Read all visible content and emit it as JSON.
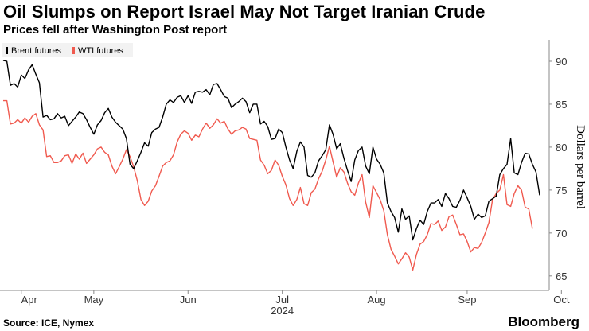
{
  "title": "Oil Slumps on Report Israel May Not Target Iranian Crude",
  "subtitle": "Prices fell after Washington Post report",
  "source": "Source: ICE, Nymex",
  "brand": "Bloomberg",
  "colors": {
    "brent": "#000000",
    "wti": "#f05a4f",
    "axis": "#888888",
    "tick": "#666666"
  },
  "chart_data": {
    "type": "line",
    "ylabel": "Dollars per barrel",
    "ylim": [
      63.5,
      92.5
    ],
    "yticks": [
      65,
      70,
      75,
      80,
      85,
      90
    ],
    "xticks": [
      "Apr",
      "May",
      "Jun",
      "Jul",
      "Aug",
      "Sep",
      "Oct"
    ],
    "year_label": "2024",
    "grid": false,
    "legend": "top-left",
    "series": [
      {
        "name": "Brent futures",
        "color": "#000000",
        "values": [
          90.1,
          90.0,
          87.2,
          87.4,
          87.0,
          88.4,
          88.0,
          89.0,
          89.6,
          88.5,
          87.5,
          83.5,
          83.7,
          83.2,
          83.3,
          83.9,
          83.4,
          83.6,
          82.5,
          83.0,
          83.5,
          84.1,
          83.9,
          83.2,
          82.3,
          81.5,
          82.6,
          83.1,
          84.0,
          84.5,
          83.5,
          82.9,
          82.5,
          82.1,
          81.0,
          78.0,
          77.5,
          78.4,
          79.4,
          80.5,
          80.1,
          81.7,
          82.1,
          82.3,
          83.5,
          85.0,
          85.5,
          85.2,
          85.8,
          86.0,
          85.2,
          86.0,
          85.1,
          86.4,
          86.5,
          86.4,
          86.7,
          86.1,
          87.3,
          87.4,
          86.7,
          85.9,
          85.7,
          84.6,
          85.0,
          85.3,
          85.7,
          85.3,
          84.0,
          85.0,
          85.0,
          82.7,
          83.0,
          82.4,
          80.9,
          81.0,
          82.1,
          81.7,
          80.0,
          78.5,
          77.5,
          79.5,
          80.6,
          80.0,
          76.7,
          76.5,
          77.0,
          78.4,
          79.0,
          79.7,
          82.6,
          81.5,
          79.8,
          80.4,
          78.7,
          77.3,
          76.0,
          78.5,
          79.6,
          80.0,
          77.8,
          76.9,
          80.0,
          78.6,
          78.0,
          77.0,
          73.5,
          72.5,
          71.8,
          70.1,
          72.8,
          71.6,
          72.0,
          69.2,
          70.5,
          71.5,
          71.0,
          72.5,
          73.5,
          73.5,
          73.9,
          73.1,
          74.6,
          74.0,
          73.1,
          73.0,
          73.8,
          75.0,
          74.1,
          73.1,
          71.6,
          72.2,
          71.8,
          72.0,
          73.7,
          74.0,
          74.3,
          76.8,
          77.5,
          78.0,
          81.0,
          77.0,
          76.8,
          78.2,
          79.3,
          79.2,
          78.0,
          77.1,
          74.4
        ]
      },
      {
        "name": "WTI futures",
        "color": "#f05a4f",
        "values": [
          85.4,
          85.4,
          82.7,
          82.8,
          83.2,
          82.8,
          83.4,
          82.9,
          83.6,
          83.9,
          82.6,
          82.0,
          78.9,
          79.0,
          78.2,
          78.2,
          78.4,
          79.0,
          79.1,
          78.1,
          79.2,
          78.6,
          79.3,
          78.1,
          78.6,
          79.1,
          79.8,
          80.0,
          79.4,
          79.1,
          77.8,
          76.9,
          77.7,
          78.6,
          79.7,
          78.9,
          77.7,
          76.1,
          73.9,
          73.2,
          73.7,
          74.9,
          75.5,
          76.6,
          77.8,
          78.2,
          78.4,
          79.1,
          80.6,
          81.5,
          81.9,
          81.6,
          80.8,
          81.4,
          81.2,
          82.1,
          82.8,
          82.2,
          82.6,
          83.3,
          82.8,
          83.0,
          82.1,
          81.5,
          81.9,
          82.0,
          82.3,
          82.1,
          81.0,
          80.9,
          80.8,
          78.5,
          77.9,
          76.9,
          77.3,
          78.5,
          77.9,
          76.6,
          75.6,
          74.0,
          73.2,
          73.9,
          75.3,
          73.4,
          73.2,
          74.7,
          75.1,
          76.3,
          77.2,
          78.5,
          80.1,
          78.3,
          76.5,
          77.6,
          77.1,
          75.8,
          74.8,
          74.4,
          75.8,
          76.8,
          73.6,
          71.8,
          75.5,
          74.7,
          73.9,
          72.6,
          69.8,
          68.1,
          67.3,
          66.4,
          67.0,
          67.7,
          67.2,
          65.7,
          67.5,
          68.7,
          69.0,
          69.8,
          71.1,
          71.0,
          71.4,
          70.3,
          70.7,
          71.9,
          72.1,
          71.0,
          69.8,
          69.9,
          69.0,
          67.8,
          68.3,
          68.2,
          68.9,
          70.0,
          71.2,
          73.9,
          74.6,
          75.0,
          76.8,
          73.3,
          73.1,
          74.6,
          75.5,
          75.0,
          73.0,
          72.8,
          70.5
        ]
      }
    ],
    "tick_positions": [
      5,
      25,
      51,
      77,
      103,
      128,
      154
    ]
  }
}
